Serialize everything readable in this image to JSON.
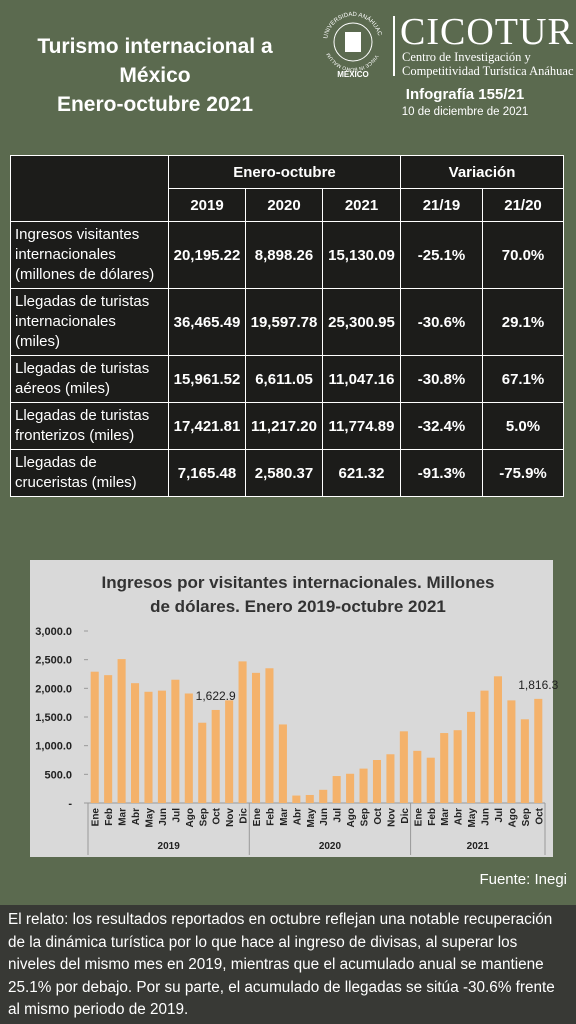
{
  "header": {
    "title_lines": [
      "Turismo internacional a",
      "México",
      "Enero-octubre 2021"
    ],
    "university": "UNIVERSIDAD ANÁHUAC",
    "motto": "VINCE IN BONO MALUM",
    "university_location": "MÉXICO",
    "brand": "CICOTUR",
    "brand_subtitle": [
      "Centro de Investigación y",
      "Competitividad Turística Anáhuac"
    ],
    "infographic": "Infografía 155/21",
    "date": "10 de diciembre de 2021"
  },
  "table": {
    "group_headers": [
      "Enero-octubre",
      "Variación"
    ],
    "columns": [
      "2019",
      "2020",
      "2021",
      "21/19",
      "21/20"
    ],
    "rows": [
      [
        "Ingresos visitantes internacionales (millones de dólares)",
        "20,195.22",
        "8,898.26",
        "15,130.09",
        "-25.1%",
        "70.0%"
      ],
      [
        "Llegadas de turistas internacionales (miles)",
        "36,465.49",
        "19,597.78",
        "25,300.95",
        "-30.6%",
        "29.1%"
      ],
      [
        "Llegadas de turistas aéreos (miles)",
        "15,961.52",
        "6,611.05",
        "11,047.16",
        "-30.8%",
        "67.1%"
      ],
      [
        "Llegadas de turistas fronterizos (miles)",
        "17,421.81",
        "11,217.20",
        "11,774.89",
        "-32.4%",
        "5.0%"
      ],
      [
        "Llegadas de cruceristas (miles)",
        "7,165.48",
        "2,580.37",
        "621.32",
        "-91.3%",
        "-75.9%"
      ]
    ]
  },
  "chart_data": {
    "type": "bar",
    "title_lines": [
      "Ingresos por visitantes internacionales. Millones",
      "de dólares. Enero 2019-octubre 2021"
    ],
    "categories": [
      "Ene",
      "Feb",
      "Mar",
      "Abr",
      "May",
      "Jun",
      "Jul",
      "Ago",
      "Sep",
      "Oct",
      "Nov",
      "Dic",
      "Ene",
      "Feb",
      "Mar",
      "Abr",
      "May",
      "Jun",
      "Jul",
      "Ago",
      "Sep",
      "Oct",
      "Nov",
      "Dic",
      "Ene",
      "Feb",
      "Mar",
      "Abr",
      "May",
      "Jun",
      "Jul",
      "Ago",
      "Sep",
      "Oct"
    ],
    "groups": [
      "2019",
      "2020",
      "2021"
    ],
    "values": [
      2290,
      2230,
      2510,
      2090,
      1940,
      1960,
      2150,
      1910,
      1400,
      1622.9,
      1790,
      2470,
      2270,
      2350,
      1370,
      130,
      140,
      230,
      470,
      510,
      600,
      750,
      850,
      1250,
      910,
      790,
      1220,
      1270,
      1590,
      1960,
      2210,
      1790,
      1460,
      1816.3
    ],
    "value_labels": [
      null,
      null,
      null,
      null,
      null,
      null,
      null,
      null,
      null,
      "1,622.9",
      null,
      null,
      null,
      null,
      null,
      null,
      null,
      null,
      null,
      null,
      null,
      null,
      null,
      null,
      null,
      null,
      null,
      null,
      null,
      null,
      null,
      null,
      null,
      "1,816.3"
    ],
    "color": "#f4b26b",
    "ylim": [
      0,
      3000
    ],
    "yticks": [
      {
        "value": 0,
        "label": "-"
      },
      {
        "value": 500,
        "label": "500.0"
      },
      {
        "value": 1000,
        "label": "1,000.0"
      },
      {
        "value": 1500,
        "label": "1,500.0"
      },
      {
        "value": 2000,
        "label": "2,000.0"
      },
      {
        "value": 2500,
        "label": "2,500.0"
      },
      {
        "value": 3000,
        "label": "3,000.0"
      }
    ],
    "grid": false
  },
  "source": "Fuente: Inegi",
  "summary": "El relato: los resultados reportados en octubre reflejan una notable recuperación de la dinámica turística por lo que hace al ingreso de divisas, al superar los niveles del mismo mes en 2019, mientras que el acumulado anual se mantiene 25.1% por debajo. Por su parte, el acumulado de llegadas se sitúa -30.6% frente al mismo periodo de 2019."
}
